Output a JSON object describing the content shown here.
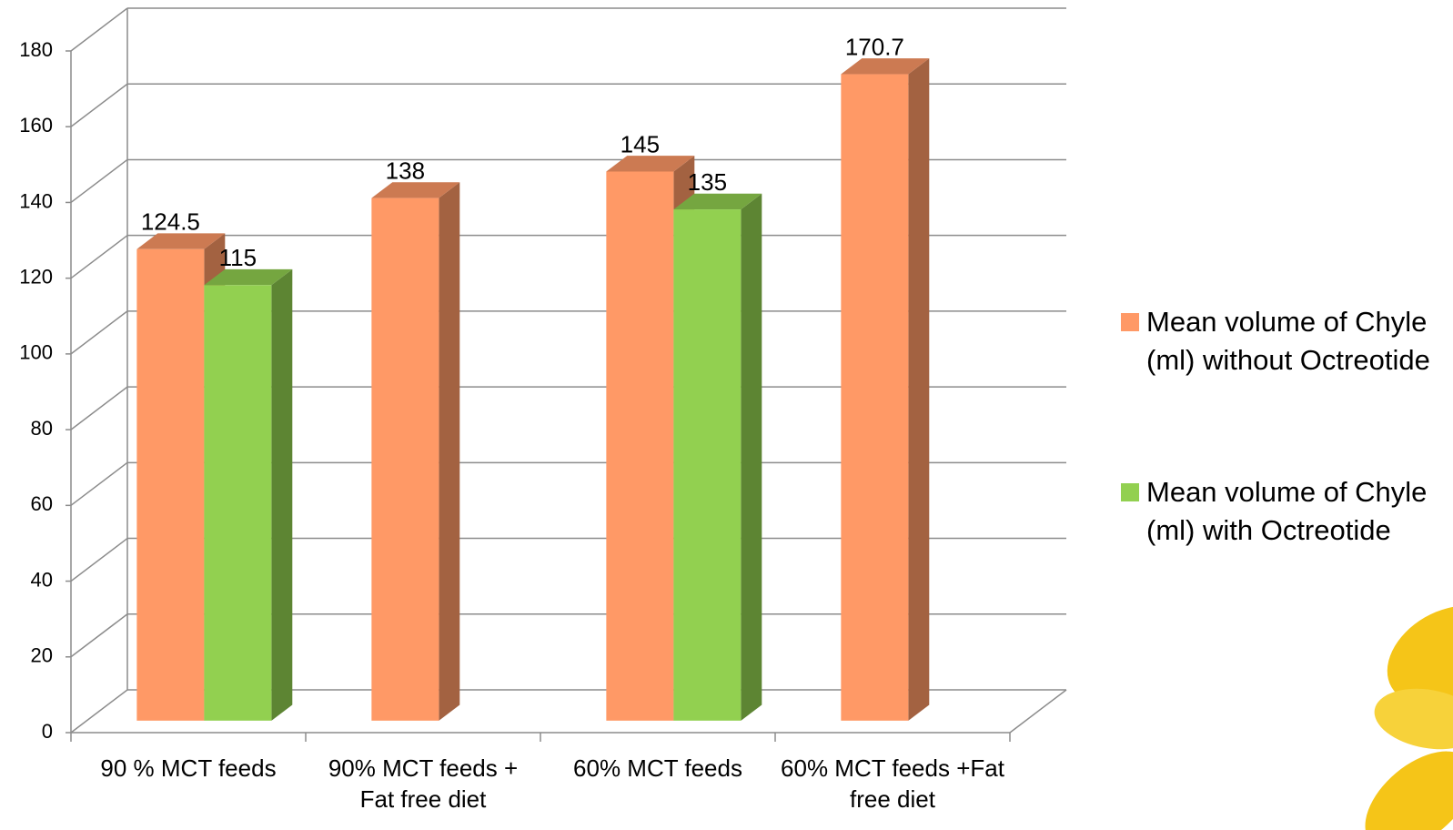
{
  "chart_data": {
    "type": "bar3d",
    "categories": [
      "90 % MCT feeds",
      "90% MCT feeds + Fat free diet",
      "60% MCT feeds",
      "60% MCT feeds +Fat free diet"
    ],
    "series": [
      {
        "name": "Mean volume of Chyle (ml) without Octreotide",
        "color": "#ff9966",
        "values": [
          124.5,
          138,
          145,
          170.7
        ]
      },
      {
        "name": "Mean volume of Chyle (ml) with Octreotide",
        "color": "#92d050",
        "values": [
          115,
          null,
          135,
          null
        ]
      }
    ],
    "ylim": [
      0,
      180
    ],
    "yticks": [
      0,
      20,
      40,
      60,
      80,
      100,
      120,
      140,
      160,
      180
    ],
    "grid": true,
    "legend": "right"
  }
}
